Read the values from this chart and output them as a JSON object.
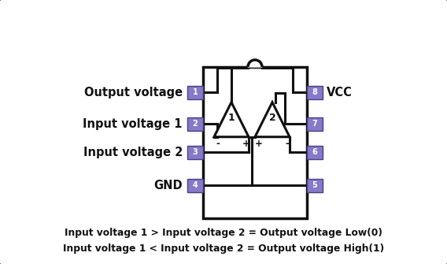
{
  "bg_color": "#ffffff",
  "ic_body_color": "#ffffff",
  "ic_border_color": "#111111",
  "pin_box_color": "#8878c8",
  "pin_box_border": "#444488",
  "pin_text_color": "#ffffff",
  "label_color": "#111111",
  "triangle_fill": "#ffffff",
  "triangle_border": "#111111",
  "text_color": "#111111",
  "outer_border_color": "#555555",
  "left_labels": [
    "Output voltage",
    "Input voltage 1",
    "Input voltage 2",
    "GND"
  ],
  "right_labels": [
    "VCC",
    "",
    "",
    ""
  ],
  "left_pins": [
    "1",
    "2",
    "3",
    "4"
  ],
  "right_pins": [
    "8",
    "7",
    "6",
    "5"
  ],
  "bottom_text1": "Input voltage 1 > Input voltage 2 = Output voltage Low(0)",
  "bottom_text2": "Input voltage 1 < Input voltage 2 = Output voltage High(1)",
  "comparator_labels": [
    "1",
    "2"
  ]
}
